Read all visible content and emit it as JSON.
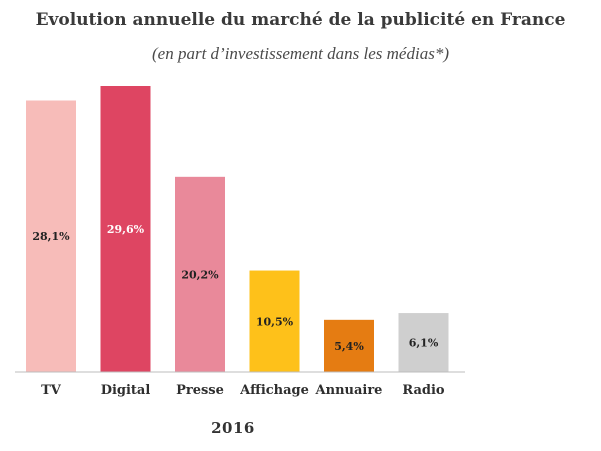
{
  "chart_data": {
    "type": "bar",
    "title": "Evolution annuelle du marché de la publicité en France",
    "subtitle": "(en part d’investissement dans les médias*)",
    "xlabel": "2016",
    "ylabel": "",
    "unit": "%",
    "ylim": [
      0,
      30
    ],
    "grid": false,
    "legend": "none",
    "categories": [
      "TV",
      "Digital",
      "Presse",
      "Affichage",
      "Annuaire",
      "Radio"
    ],
    "values": [
      28.1,
      29.6,
      20.2,
      10.5,
      5.4,
      6.1
    ],
    "value_labels": [
      "28,1%",
      "29,6%",
      "20,2%",
      "10,5%",
      "5,4%",
      "6,1%"
    ],
    "colors": [
      "#f7bcb9",
      "#de4562",
      "#e9899a",
      "#fec11a",
      "#e57c12",
      "#cfcfcf"
    ],
    "label_colors": [
      "#222222",
      "#ffffff",
      "#222222",
      "#222222",
      "#222222",
      "#222222"
    ]
  }
}
